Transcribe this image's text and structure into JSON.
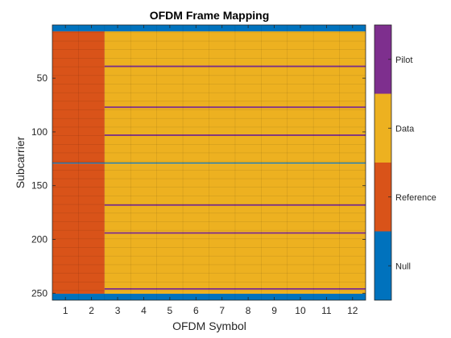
{
  "chart_data": {
    "type": "heatmap",
    "title": "OFDM Frame Mapping",
    "xlabel": "OFDM Symbol",
    "ylabel": "Subcarrier",
    "x_ticks": [
      "1",
      "2",
      "3",
      "4",
      "5",
      "6",
      "7",
      "8",
      "9",
      "10",
      "11",
      "12"
    ],
    "y_ticks": [
      {
        "value": 50,
        "label": "50"
      },
      {
        "value": 100,
        "label": "100"
      },
      {
        "value": 150,
        "label": "150"
      },
      {
        "value": 200,
        "label": "200"
      },
      {
        "value": 250,
        "label": "250"
      }
    ],
    "xlim": [
      0.5,
      12.5
    ],
    "ylim": [
      0.5,
      256.5
    ],
    "y_reversed": true,
    "grid": false,
    "num_symbols": 12,
    "num_subcarriers": 256,
    "colorbar": {
      "position": "right",
      "categories": [
        "Null",
        "Reference",
        "Data",
        "Pilot"
      ],
      "colors": [
        "#0072BD",
        "#D95319",
        "#EDB120",
        "#7E2F8E"
      ]
    },
    "regions": [
      {
        "category": "Null",
        "symbols": [
          1,
          12
        ],
        "subcarriers": [
          1,
          6
        ]
      },
      {
        "category": "Null",
        "symbols": [
          1,
          12
        ],
        "subcarriers": [
          251,
          256
        ]
      },
      {
        "category": "Null",
        "symbols": [
          1,
          12
        ],
        "subcarriers": [
          129,
          129
        ]
      },
      {
        "category": "Reference",
        "symbols": [
          1,
          2
        ],
        "subcarriers": [
          7,
          128
        ]
      },
      {
        "category": "Reference",
        "symbols": [
          1,
          2
        ],
        "subcarriers": [
          130,
          250
        ]
      },
      {
        "category": "Data",
        "symbols": [
          3,
          12
        ],
        "subcarriers": [
          7,
          128
        ]
      },
      {
        "category": "Data",
        "symbols": [
          3,
          12
        ],
        "subcarriers": [
          130,
          250
        ]
      }
    ],
    "pilot_subcarriers": [
      39,
      77,
      103,
      168,
      194,
      246
    ],
    "pilot_symbols": [
      3,
      12
    ]
  }
}
